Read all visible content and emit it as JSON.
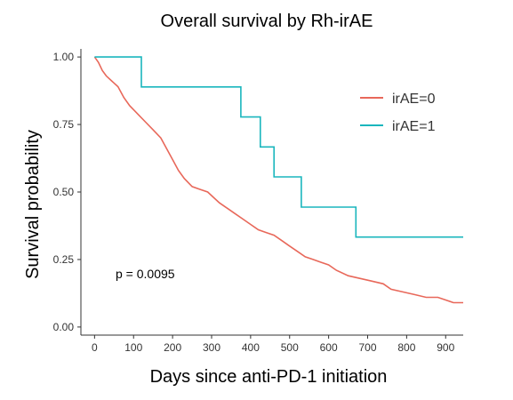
{
  "chart_data": {
    "type": "line",
    "title": "Overall survival by Rh-irAE",
    "xlabel": "Days since anti-PD-1 initiation",
    "ylabel": "Survival probability",
    "xlim": [
      -35,
      945
    ],
    "ylim": [
      -0.03,
      1.03
    ],
    "x_ticks": [
      0,
      100,
      200,
      300,
      400,
      500,
      600,
      700,
      800,
      900
    ],
    "y_ticks": [
      0.0,
      0.25,
      0.5,
      0.75,
      1.0
    ],
    "y_tick_labels": [
      "0.00",
      "0.25",
      "0.50",
      "0.75",
      "1.00"
    ],
    "grid": false,
    "legend_position": "top-right",
    "annotation": "p = 0.0095",
    "series": [
      {
        "name": "irAE=0",
        "color": "#e8685a",
        "points": [
          [
            0,
            1.0
          ],
          [
            10,
            0.98
          ],
          [
            20,
            0.95
          ],
          [
            30,
            0.93
          ],
          [
            45,
            0.91
          ],
          [
            60,
            0.89
          ],
          [
            75,
            0.85
          ],
          [
            90,
            0.82
          ],
          [
            110,
            0.79
          ],
          [
            130,
            0.76
          ],
          [
            150,
            0.73
          ],
          [
            170,
            0.7
          ],
          [
            185,
            0.66
          ],
          [
            200,
            0.62
          ],
          [
            215,
            0.58
          ],
          [
            230,
            0.55
          ],
          [
            250,
            0.52
          ],
          [
            270,
            0.51
          ],
          [
            290,
            0.5
          ],
          [
            305,
            0.48
          ],
          [
            320,
            0.46
          ],
          [
            340,
            0.44
          ],
          [
            360,
            0.42
          ],
          [
            380,
            0.4
          ],
          [
            400,
            0.38
          ],
          [
            420,
            0.36
          ],
          [
            440,
            0.35
          ],
          [
            460,
            0.34
          ],
          [
            480,
            0.32
          ],
          [
            500,
            0.3
          ],
          [
            520,
            0.28
          ],
          [
            540,
            0.26
          ],
          [
            560,
            0.25
          ],
          [
            580,
            0.24
          ],
          [
            600,
            0.23
          ],
          [
            620,
            0.21
          ],
          [
            650,
            0.19
          ],
          [
            680,
            0.18
          ],
          [
            710,
            0.17
          ],
          [
            740,
            0.16
          ],
          [
            760,
            0.14
          ],
          [
            790,
            0.13
          ],
          [
            820,
            0.12
          ],
          [
            850,
            0.11
          ],
          [
            880,
            0.11
          ],
          [
            900,
            0.1
          ],
          [
            920,
            0.09
          ],
          [
            945,
            0.09
          ]
        ]
      },
      {
        "name": "irAE=1",
        "color": "#1ab6bd",
        "points": [
          [
            0,
            1.0
          ],
          [
            120,
            1.0
          ],
          [
            120,
            0.889
          ],
          [
            375,
            0.889
          ],
          [
            375,
            0.778
          ],
          [
            425,
            0.778
          ],
          [
            425,
            0.667
          ],
          [
            460,
            0.667
          ],
          [
            460,
            0.556
          ],
          [
            530,
            0.556
          ],
          [
            530,
            0.444
          ],
          [
            670,
            0.444
          ],
          [
            670,
            0.333
          ],
          [
            945,
            0.333
          ]
        ]
      }
    ]
  }
}
